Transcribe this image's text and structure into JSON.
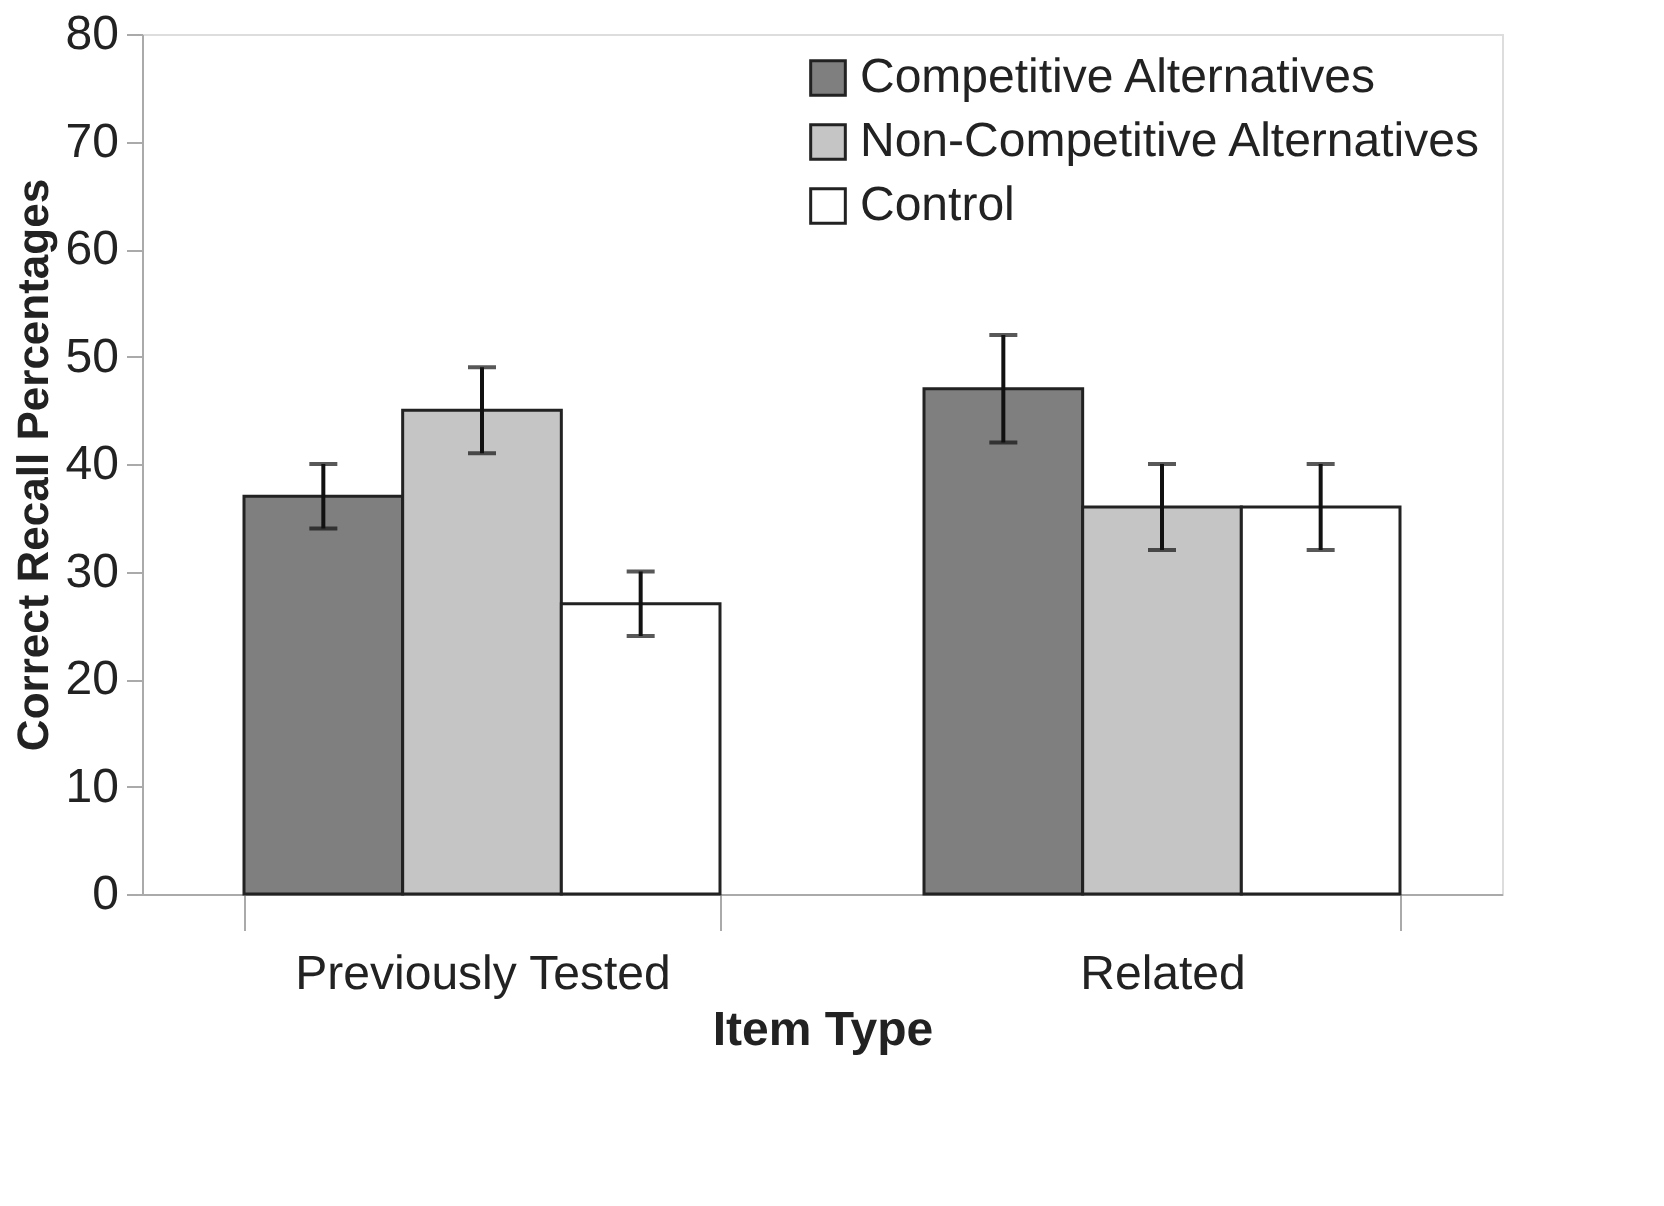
{
  "chart_data": {
    "type": "bar",
    "xlabel": "Item Type",
    "ylabel": "Correct Recall Percentages",
    "categories": [
      "Previously Tested",
      "Related"
    ],
    "series": [
      {
        "name": "Competitive Alternatives",
        "color": "#7f7f7f",
        "values": [
          37,
          47
        ],
        "errors": [
          3,
          5
        ]
      },
      {
        "name": "Non-Competitive Alternatives",
        "color": "#c4c5c4",
        "values": [
          45,
          36
        ],
        "errors": [
          4,
          4
        ]
      },
      {
        "name": "Control",
        "color": "#ffffff",
        "values": [
          27,
          36
        ],
        "errors": [
          3,
          4
        ]
      }
    ],
    "ylim": [
      0,
      80
    ],
    "yticks": [
      0,
      10,
      20,
      30,
      40,
      50,
      60,
      70,
      80
    ],
    "grid": false,
    "legend": "top right"
  }
}
